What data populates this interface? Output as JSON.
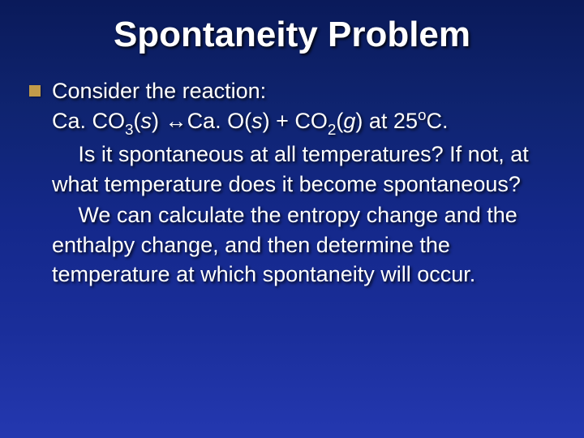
{
  "slide": {
    "background_gradient": [
      "#0a1a5a",
      "#0f2470",
      "#14288a",
      "#1a2e9a",
      "#2438b0"
    ],
    "bullet_color": "#c29b4a",
    "text_color": "#ffffff",
    "title_fontsize_pt": 33,
    "body_fontsize_pt": 20,
    "title": "Spontaneity Problem",
    "lines": {
      "l0": "Consider the reaction:",
      "eq_caco3": "Ca. CO",
      "eq_sub3": "3",
      "eq_s1a": "(",
      "eq_s1_it": "s",
      "eq_s1b": ")",
      "eq_arrow": " ↔",
      "eq_cao": "Ca. O(",
      "eq_s2_it": "s",
      "eq_s2b": ")",
      "eq_plus": "  +  ",
      "eq_co2": "CO",
      "eq_sub2": "2",
      "eq_g_a": "(",
      "eq_g_it": "g",
      "eq_g_b": ")",
      "eq_at": "  at 25",
      "eq_supo": "o",
      "eq_c": "C.",
      "q1": "Is it spontaneous at all temperatures?  If not, at what temperature does it become spontaneous?",
      "q2": "We can calculate the entropy change and the enthalpy change, and then determine the temperature at which spontaneity will occur."
    }
  }
}
